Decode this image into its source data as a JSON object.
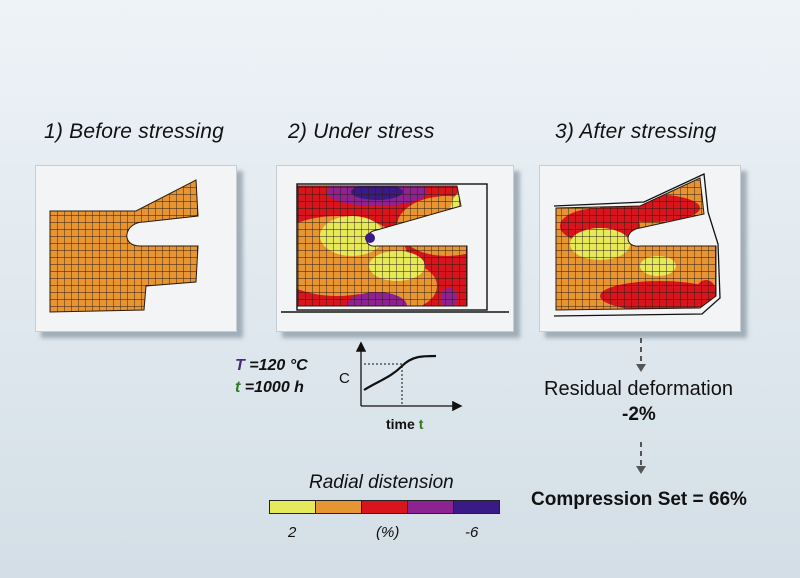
{
  "titles": {
    "before": "1) Before stressing",
    "under": "2) Under stress",
    "after": "3) After stressing"
  },
  "conditions": {
    "temp_symbol": "T",
    "temp_value": " =120 °C",
    "time_symbol": "t",
    "time_value": " =1000 h"
  },
  "mini_chart": {
    "ylabel": "C",
    "xlabel": "time",
    "xlabel_symbol": "t"
  },
  "results": {
    "residual_label": "Residual deformation",
    "residual_value": "-2%",
    "compression_set": "Compression Set = 66%"
  },
  "legend": {
    "title": "Radial distension",
    "colors": [
      "#e6ea5a",
      "#e79433",
      "#d8141c",
      "#8d2390",
      "#3a1a86"
    ],
    "ticks": [
      "2",
      "(%)",
      "-6"
    ]
  },
  "colors": {
    "mesh_fill": "#e79433",
    "yellow": "#e6ea5a",
    "red": "#d8141c",
    "purple": "#8d2390",
    "navy": "#3a1a86",
    "arrow": "#555555"
  }
}
